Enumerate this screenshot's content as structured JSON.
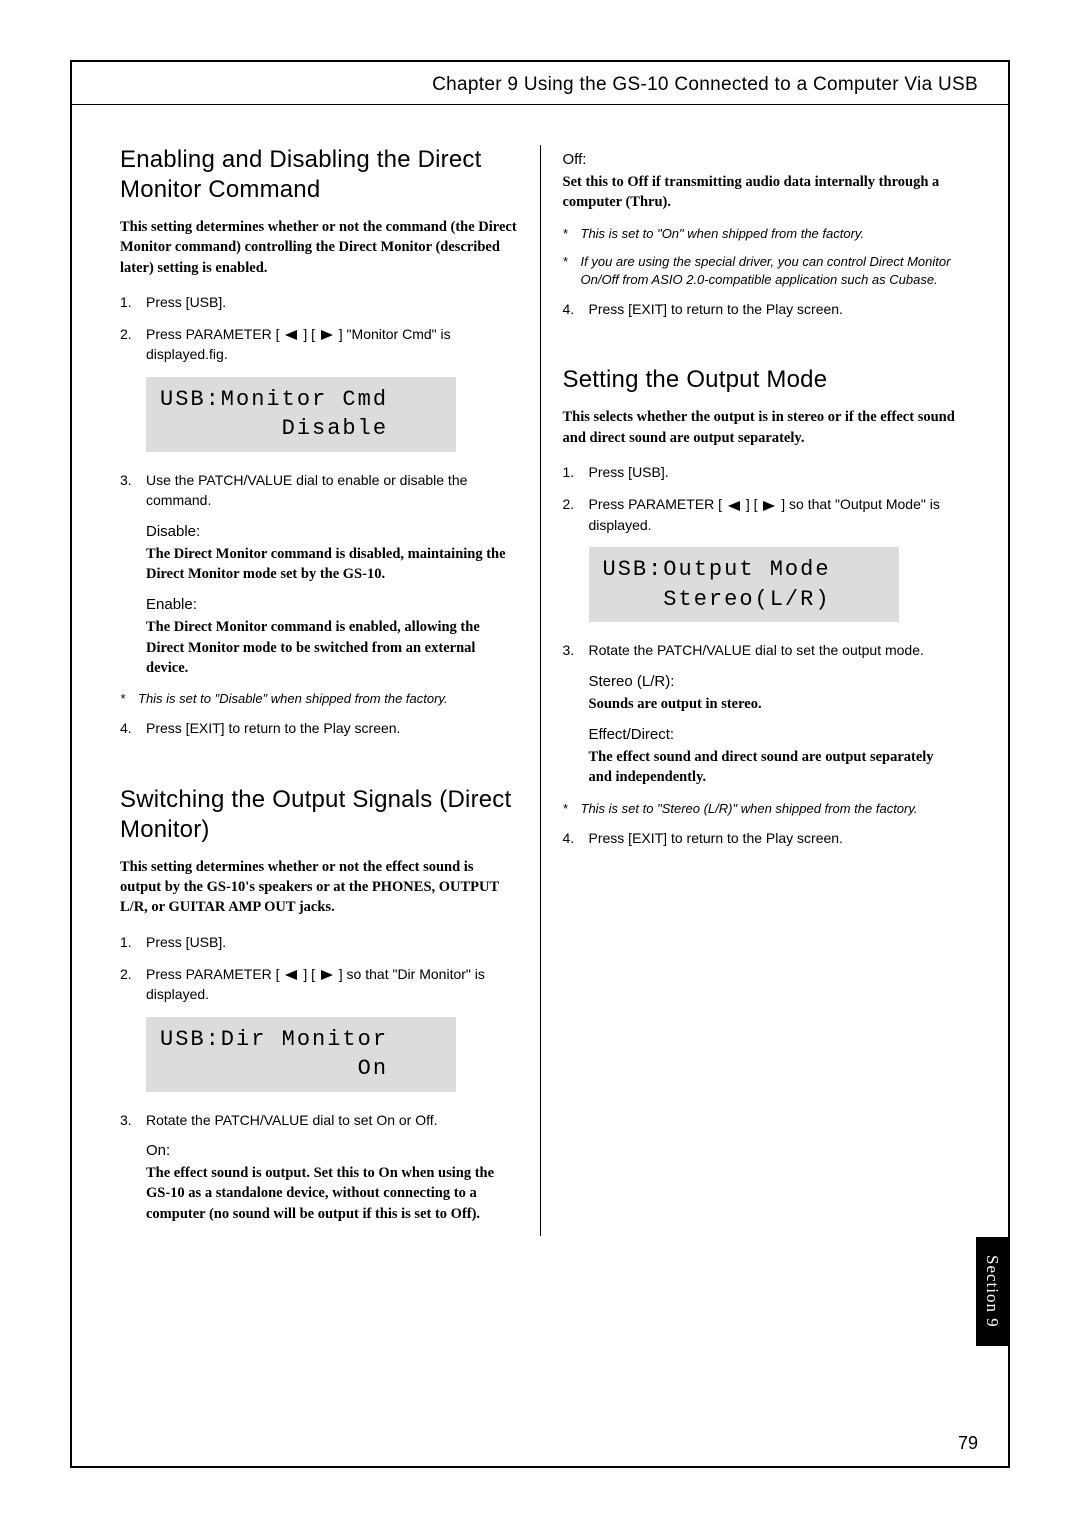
{
  "chapter_header": "Chapter 9 Using the GS-10 Connected to a Computer Via USB",
  "page_number": "79",
  "section_tab": "Section 9",
  "left": {
    "sec1": {
      "title": "Enabling and Disabling the Direct Monitor Command",
      "intro": "This setting determines whether or not the command (the Direct Monitor command) controlling the Direct Monitor (described later) setting is enabled.",
      "step1": "Press [USB].",
      "step2_a": "Press PARAMETER [ ",
      "step2_b": " ] [ ",
      "step2_c": " ] \"Monitor Cmd\" is displayed.fig.",
      "lcd": "USB:Monitor Cmd\n        Disable",
      "step3": "Use the PATCH/VALUE dial to enable or disable the command.",
      "disable_label": "Disable:",
      "disable_desc": "The Direct Monitor command is disabled, maintaining the Direct Monitor mode set by the GS-10.",
      "enable_label": "Enable:",
      "enable_desc": "The Direct Monitor command is enabled, allowing the Direct Monitor mode to be switched from an external device.",
      "note1": "This is set to \"Disable\" when shipped from the factory.",
      "step4": "Press [EXIT] to return to the Play screen."
    },
    "sec2": {
      "title": "Switching the Output Signals (Direct Monitor)",
      "intro": "This setting determines whether or not the effect sound is output by the GS-10's speakers or at the PHONES, OUTPUT L/R, or GUITAR AMP OUT jacks.",
      "step1": "Press [USB].",
      "step2_a": "Press PARAMETER [ ",
      "step2_b": " ] [ ",
      "step2_c": " ] so that \"Dir Monitor\" is displayed.",
      "lcd": "USB:Dir Monitor\n             On",
      "step3": "Rotate the PATCH/VALUE dial to set On or Off.",
      "on_label": "On:",
      "on_desc": "The effect sound is output. Set this to On when using the GS-10 as a standalone device, without connecting to a computer (no sound will be output if this is set to Off)."
    }
  },
  "right": {
    "off_label": "Off:",
    "off_desc": "Set this to Off if transmitting audio data internally through a computer (Thru).",
    "note1": "This is set to \"On\" when shipped from the factory.",
    "note2": "If you are using the special driver, you can control Direct Monitor On/Off from ASIO 2.0-compatible application such as Cubase.",
    "step4": "Press [EXIT] to return to the Play screen.",
    "sec3": {
      "title": "Setting the Output Mode",
      "intro": "This selects whether the output is in stereo or if the effect sound and direct sound are output separately.",
      "step1": "Press [USB].",
      "step2_a": "Press PARAMETER [ ",
      "step2_b": " ] [ ",
      "step2_c": " ] so that \"Output Mode\" is displayed.",
      "lcd": "USB:Output Mode\n    Stereo(L/R)",
      "step3": "Rotate the PATCH/VALUE dial to set the output mode.",
      "stereo_label": "Stereo (L/R):",
      "stereo_desc": "Sounds are output in stereo.",
      "effect_label": "Effect/Direct:",
      "effect_desc": "The effect sound and direct sound are output separately and independently.",
      "note1": "This is set to \"Stereo (L/R)\" when shipped from the factory.",
      "step4": "Press [EXIT] to return to the Play screen."
    }
  }
}
